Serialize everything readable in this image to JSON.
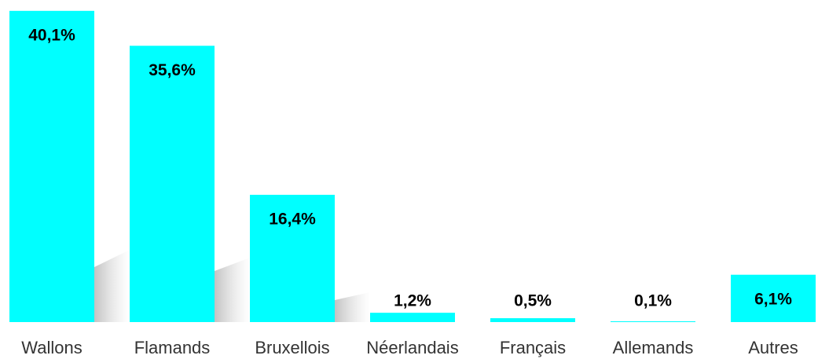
{
  "chart_data": {
    "type": "bar",
    "categories": [
      "Wallons",
      "Flamands",
      "Bruxellois",
      "Néerlandais",
      "Français",
      "Allemands",
      "Autres"
    ],
    "values": [
      40.1,
      35.6,
      16.4,
      1.2,
      0.5,
      0.1,
      6.1
    ],
    "value_labels": [
      "40,1%",
      "35,6%",
      "16,4%",
      "1,2%",
      "0,5%",
      "0,1%",
      "6,1%"
    ],
    "color": "#00ffff"
  }
}
